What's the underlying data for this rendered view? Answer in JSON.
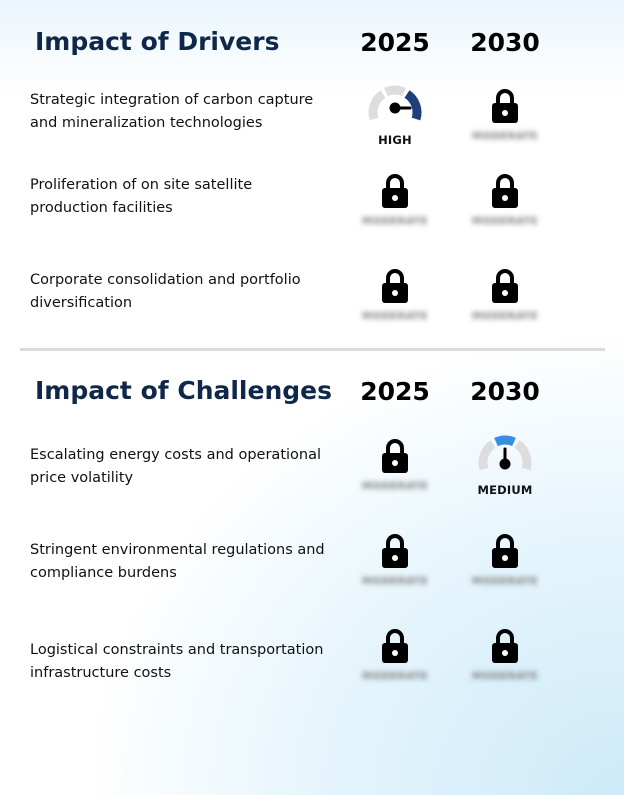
{
  "drivers": {
    "title": "Impact of Drivers",
    "year_1": "2025",
    "year_2": "2030",
    "rows": [
      {
        "label": "Strategic integration of carbon capture and mineralization technologies",
        "cell_1": {
          "type": "gauge",
          "label": "HIGH",
          "level": "high",
          "color": "#1f3f7a"
        },
        "cell_2": {
          "type": "locked",
          "blurred_text": "MODERATE"
        }
      },
      {
        "label": "Proliferation of on site satellite production facilities",
        "cell_1": {
          "type": "locked",
          "blurred_text": "MODERATE"
        },
        "cell_2": {
          "type": "locked",
          "blurred_text": "MODERATE"
        }
      },
      {
        "label": "Corporate consolidation and portfolio diversification",
        "cell_1": {
          "type": "locked",
          "blurred_text": "MODERATE"
        },
        "cell_2": {
          "type": "locked",
          "blurred_text": "MODERATE"
        }
      }
    ]
  },
  "challenges": {
    "title": "Impact of Challenges",
    "year_1": "2025",
    "year_2": "2030",
    "rows": [
      {
        "label": "Escalating energy costs and operational price volatility",
        "cell_1": {
          "type": "locked",
          "blurred_text": "MODERATE"
        },
        "cell_2": {
          "type": "gauge",
          "label": "MEDIUM",
          "level": "medium",
          "color": "#3a8ee0"
        }
      },
      {
        "label": "Stringent environmental regulations and compliance burdens",
        "cell_1": {
          "type": "locked",
          "blurred_text": "MODERATE"
        },
        "cell_2": {
          "type": "locked",
          "blurred_text": "MODERATE"
        }
      },
      {
        "label": "Logistical constraints and transportation infrastructure costs",
        "cell_1": {
          "type": "locked",
          "blurred_text": "MODERATE"
        },
        "cell_2": {
          "type": "locked",
          "blurred_text": "MODERATE"
        }
      }
    ]
  },
  "colors": {
    "title": "#0f2748",
    "gauge_track": "#dddddd",
    "lock": "#000000"
  }
}
